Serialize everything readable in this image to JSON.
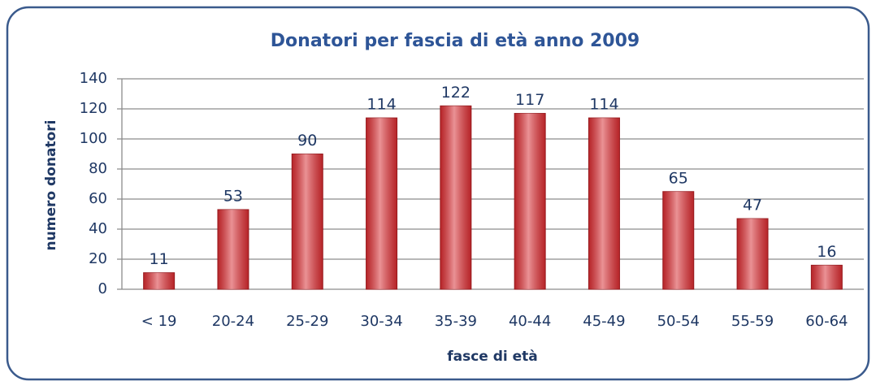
{
  "chart_data": {
    "type": "bar",
    "title": "Donatori per fascia di età anno 2009",
    "x_label": "fasce di età",
    "y_label": "numero donatori",
    "categories": [
      "< 19",
      "20-24",
      "25-29",
      "30-34",
      "35-39",
      "40-44",
      "45-49",
      "50-54",
      "55-59",
      "60-64"
    ],
    "values": [
      11,
      53,
      90,
      114,
      122,
      117,
      114,
      65,
      47,
      16
    ],
    "color": "#d9383e",
    "ylim": [
      0,
      140
    ],
    "yticks": [
      0,
      20,
      40,
      60,
      80,
      100,
      120,
      140
    ],
    "grid": true
  }
}
